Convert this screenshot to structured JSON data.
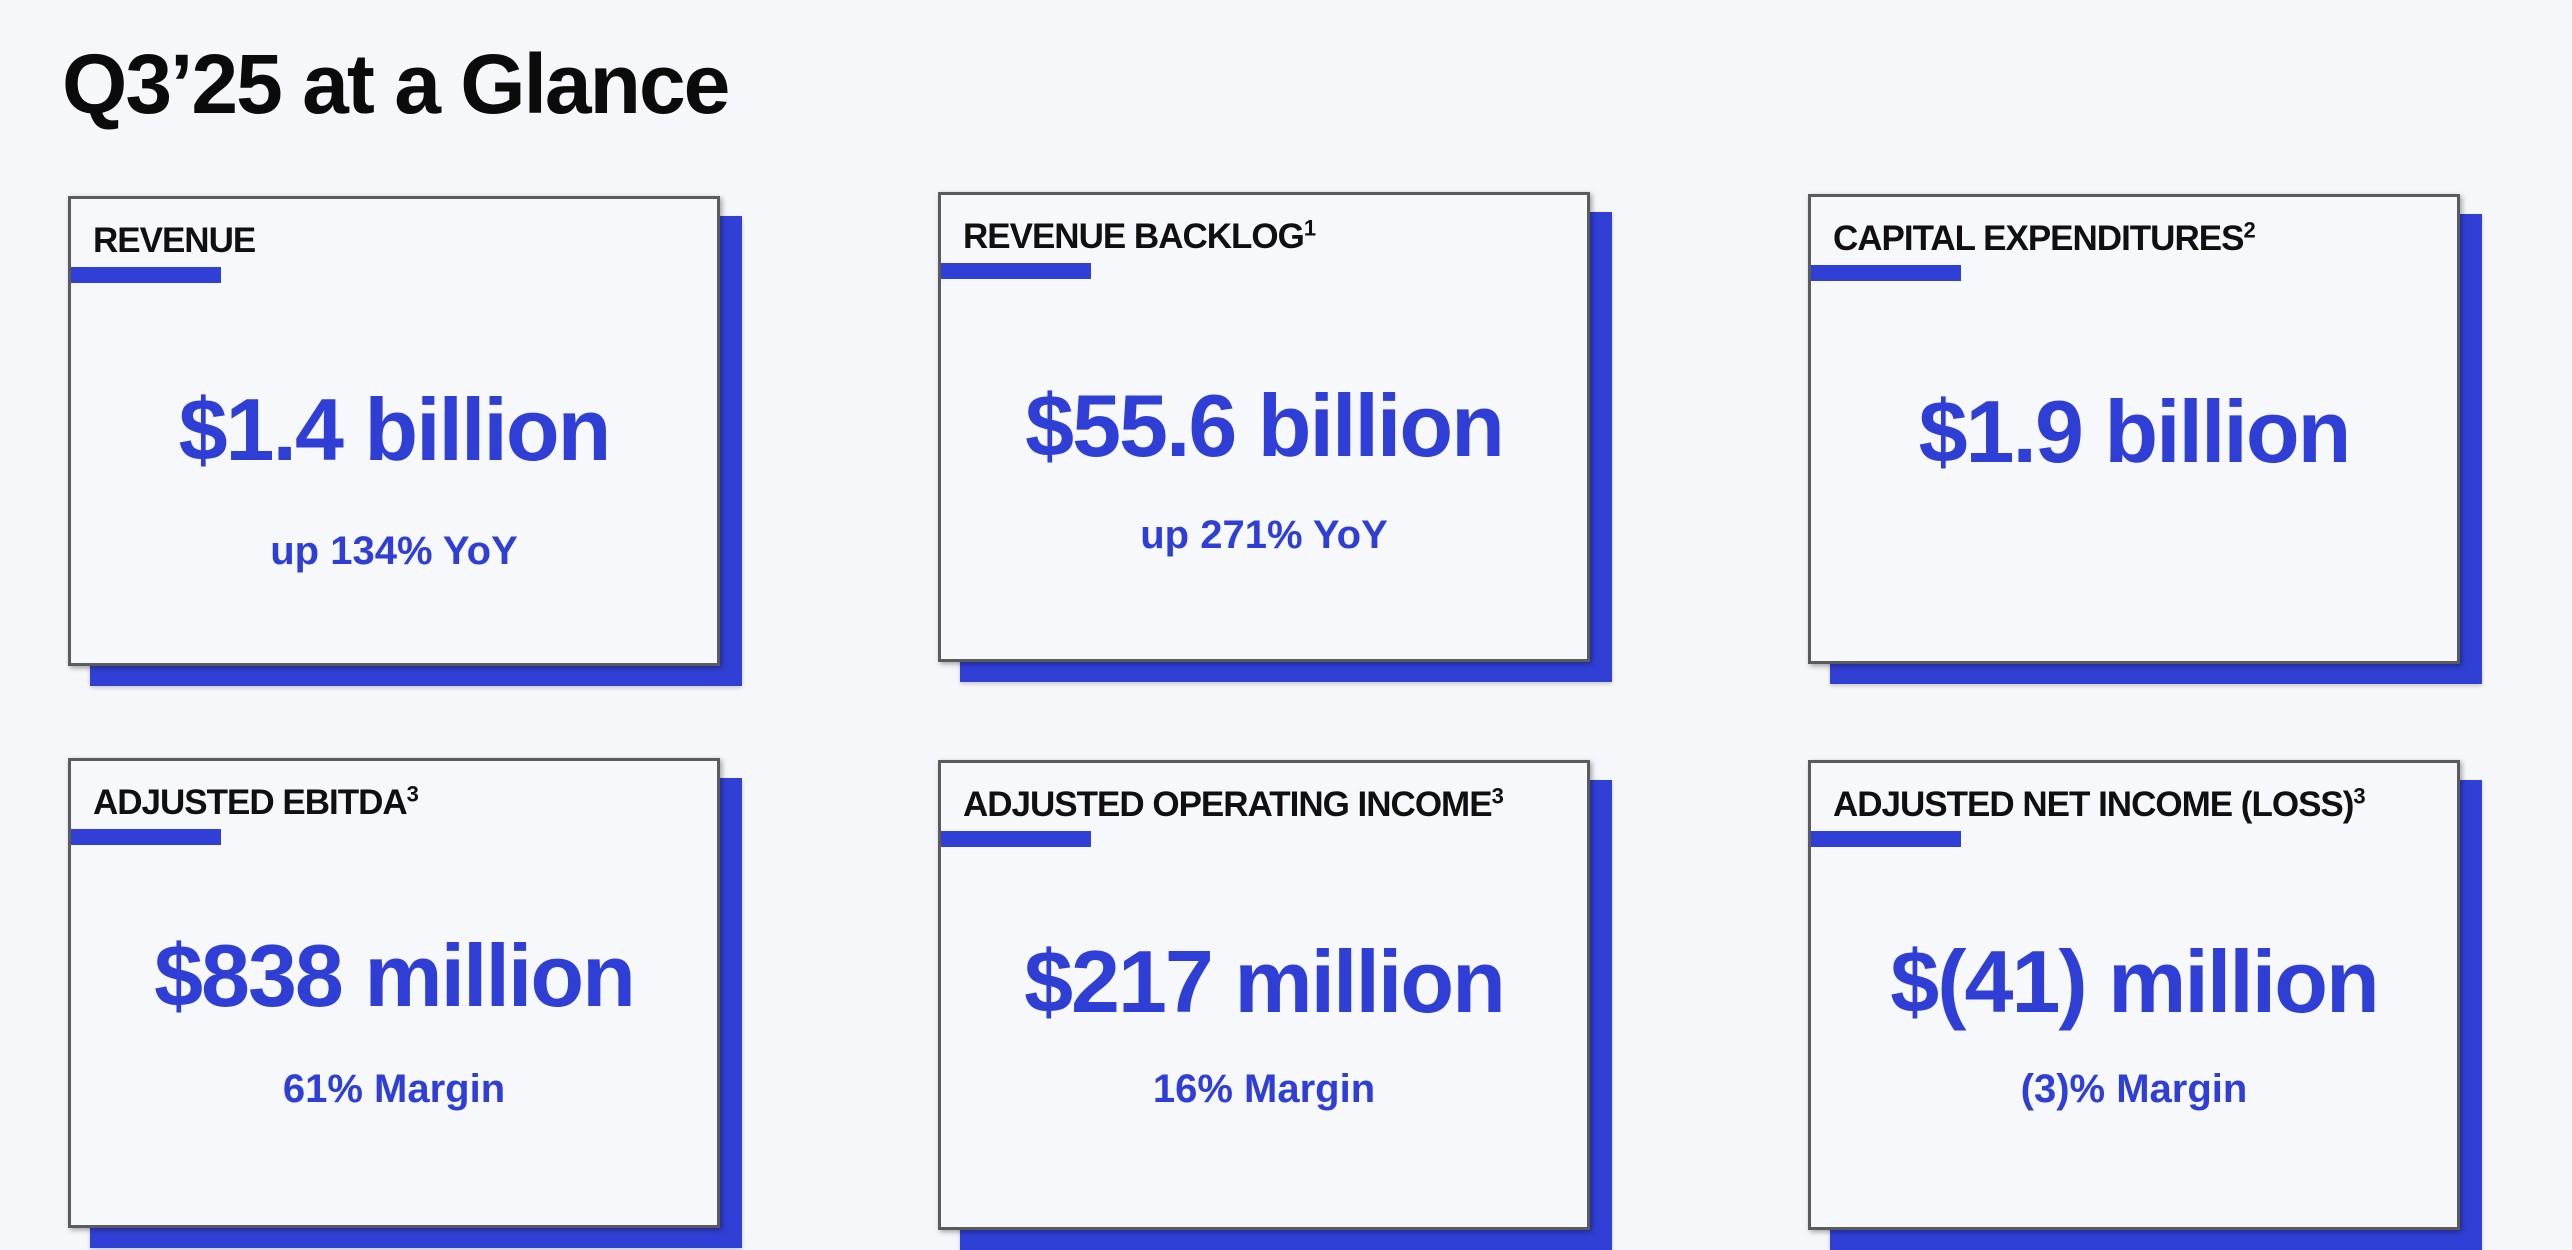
{
  "page": {
    "title": "Q3’25 at a Glance"
  },
  "cards": [
    {
      "label": "REVENUE",
      "footnote": "",
      "value": "$1.4 billion",
      "sub": "up 134% YoY"
    },
    {
      "label": "REVENUE BACKLOG",
      "footnote": "1",
      "value": "$55.6 billion",
      "sub": "up 271% YoY"
    },
    {
      "label": "CAPITAL EXPENDITURES",
      "footnote": "2",
      "value": "$1.9 billion",
      "sub": ""
    },
    {
      "label": "ADJUSTED EBITDA",
      "footnote": "3",
      "value": "$838 million",
      "sub": "61% Margin"
    },
    {
      "label": "ADJUSTED OPERATING INCOME",
      "footnote": "3",
      "value": "$217 million",
      "sub": "16% Margin"
    },
    {
      "label": "ADJUSTED NET INCOME (LOSS)",
      "footnote": "3",
      "value": "$(41) million",
      "sub": "(3)% Margin"
    }
  ],
  "colors": {
    "accent": "#3040d6",
    "background": "#f6f7fb",
    "card": "#f7f8fb",
    "text": "#0b0b0b"
  }
}
